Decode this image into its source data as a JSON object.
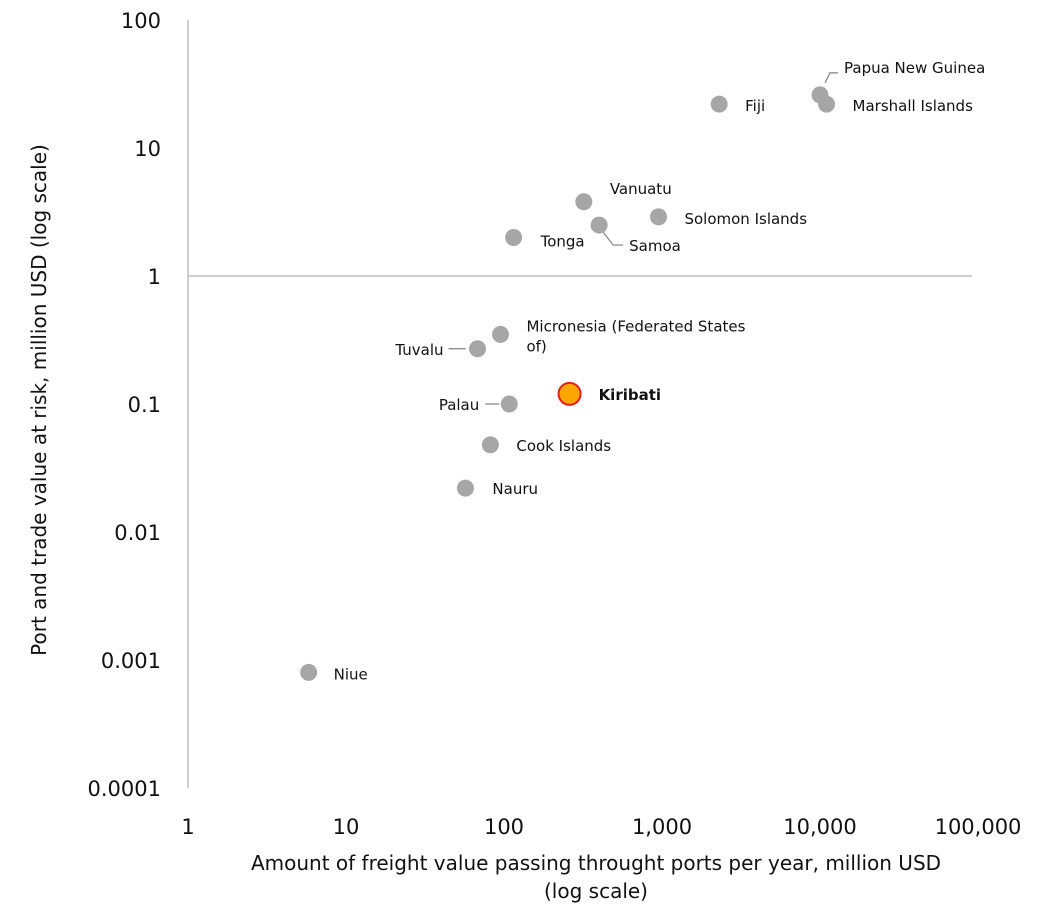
{
  "chart_data": {
    "type": "scatter",
    "xlabel_lines": [
      "Amount of freight value passing throught ports per year, million USD",
      "(log scale)"
    ],
    "ylabel": "Port and trade value at risk, million USD (log scale)",
    "x_scale": "log",
    "y_scale": "log",
    "xlim": [
      1,
      100000
    ],
    "ylim": [
      0.0001,
      100
    ],
    "x_ticks": [
      1,
      10,
      100,
      1000,
      10000,
      100000
    ],
    "x_tick_labels": [
      "1",
      "10",
      "100",
      "1,000",
      "10,000",
      "100,000"
    ],
    "y_ticks": [
      0.0001,
      0.001,
      0.01,
      0.1,
      1,
      10,
      100
    ],
    "y_tick_labels": [
      "0.0001",
      "0.001",
      "0.01",
      "0.1",
      "1",
      "10",
      "100"
    ],
    "x_axis_crosses_y_at": 1,
    "grid": false,
    "colors": {
      "point": "#a6a6a6",
      "highlight_fill": "#ffa500",
      "highlight_stroke": "#e02020",
      "axis": "#bfbfbf",
      "leader": "#808080"
    },
    "points": [
      {
        "name": "Papua New Guinea",
        "x": 10000,
        "y": 26
      },
      {
        "name": "Marshall Islands",
        "x": 11000,
        "y": 22
      },
      {
        "name": "Fiji",
        "x": 2300,
        "y": 22
      },
      {
        "name": "Vanuatu",
        "x": 320,
        "y": 3.8
      },
      {
        "name": "Solomon Islands",
        "x": 950,
        "y": 2.9
      },
      {
        "name": "Samoa",
        "x": 400,
        "y": 2.5
      },
      {
        "name": "Tonga",
        "x": 115,
        "y": 2.0
      },
      {
        "name": "Micronesia (Federated States of)",
        "x": 95,
        "y": 0.35
      },
      {
        "name": "Tuvalu",
        "x": 68,
        "y": 0.27
      },
      {
        "name": "Palau",
        "x": 108,
        "y": 0.1
      },
      {
        "name": "Kiribati",
        "x": 260,
        "y": 0.12,
        "highlight": true
      },
      {
        "name": "Cook Islands",
        "x": 82,
        "y": 0.048
      },
      {
        "name": "Nauru",
        "x": 57,
        "y": 0.022
      },
      {
        "name": "Niue",
        "x": 5.8,
        "y": 0.0008
      }
    ]
  }
}
